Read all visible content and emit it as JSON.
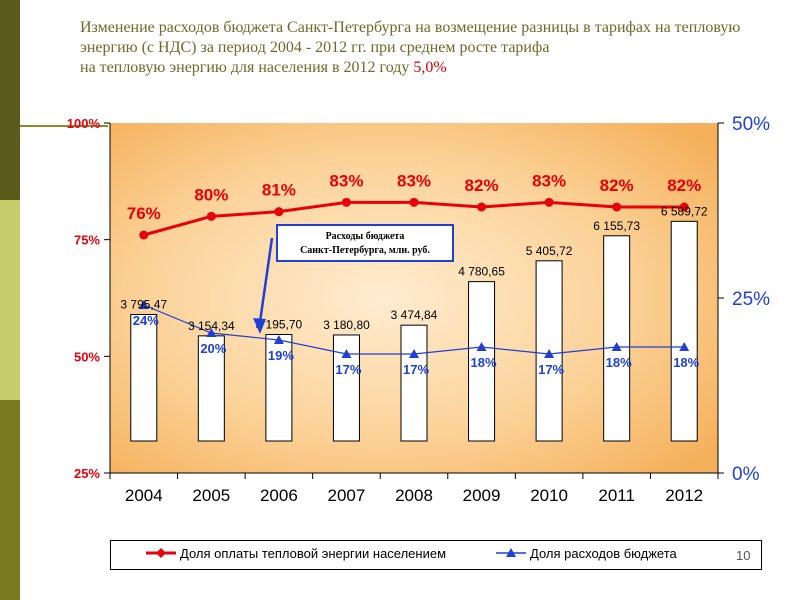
{
  "slide": {
    "title_part1": "Изменение расходов бюджета Санкт-Петербурга на возмещение разницы в тарифах на тепловую энергию (с НДС) за период 2004 - 2012 гг. при среднем росте тарифа",
    "title_part2": "на тепловую энергию для населения в 2012 году ",
    "title_highlight": "5,0%",
    "page_number": "10"
  },
  "chart_data": {
    "type": "bar",
    "categories": [
      "2004",
      "2005",
      "2006",
      "2007",
      "2008",
      "2009",
      "2010",
      "2011",
      "2012"
    ],
    "bars": {
      "name": "Расходы бюджета Санкт-Петербурга, млн. руб.",
      "values": [
        3795.47,
        3154.34,
        3195.7,
        3180.8,
        3474.84,
        4780.65,
        5405.72,
        6155.73,
        6589.72
      ],
      "labels": [
        "3 795,47",
        "3 154,34",
        "3 195,70",
        "3 180,80",
        "3 474,84",
        "4 780,65",
        "5 405,72",
        "6 155,73",
        "6 589,72"
      ]
    },
    "series": [
      {
        "name": "Доля оплаты тепловой энергии населением",
        "axis": "left",
        "color": "#e8000a",
        "values": [
          76,
          80,
          81,
          83,
          83,
          82,
          83,
          82,
          82
        ],
        "labels": [
          "76%",
          "80%",
          "81%",
          "83%",
          "83%",
          "82%",
          "83%",
          "82%",
          "82%"
        ]
      },
      {
        "name": "Доля расходов бюджета",
        "axis": "right",
        "color": "#1f3fd6",
        "values": [
          24,
          20,
          19,
          17,
          17,
          18,
          17,
          18,
          18
        ],
        "labels": [
          "24%",
          "20%",
          "19%",
          "17%",
          "17%",
          "18%",
          "17%",
          "18%",
          "18%"
        ]
      }
    ],
    "y_left": {
      "range": [
        25,
        100
      ],
      "ticks": [
        "25%",
        "50%",
        "75%",
        "100%"
      ],
      "tick_values": [
        25,
        50,
        75,
        100
      ],
      "color": "#e8000a"
    },
    "y_right": {
      "range": [
        0,
        50
      ],
      "ticks": [
        "0%",
        "25%",
        "50%"
      ],
      "tick_values": [
        0,
        25,
        50
      ],
      "color": "#1f3fd6"
    },
    "annotation": {
      "text_line1": "Расходы бюджета",
      "text_line2": "Санкт-Петербурга, млн. руб."
    },
    "legend_position": "bottom",
    "colors": {
      "plot_bg_center": "#ffe9c8",
      "plot_bg_edge": "#f6b45e"
    }
  }
}
